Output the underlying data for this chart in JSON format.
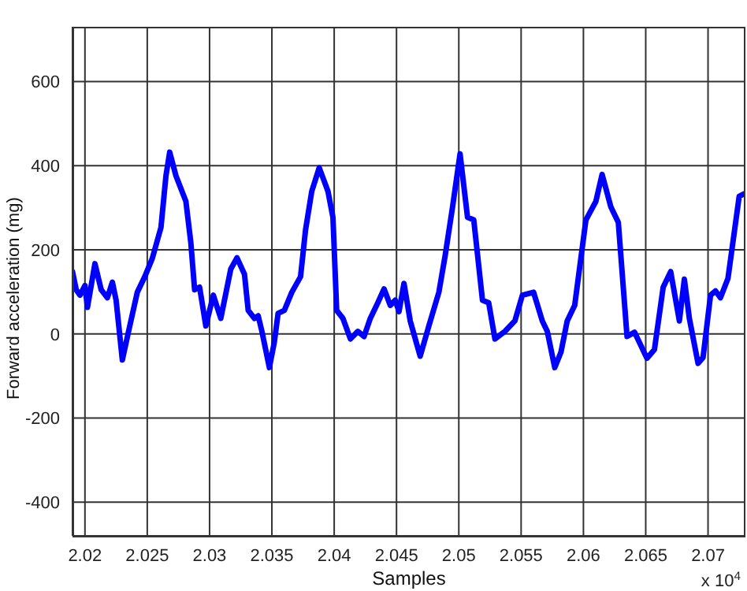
{
  "chart_data": {
    "type": "line",
    "xlabel": "Samples",
    "ylabel": "Forward acceleration (mg)",
    "annotations": [
      "x 10$^{4}$"
    ],
    "xlim": [
      2.019,
      2.073
    ],
    "xticks": [
      2.02,
      2.025,
      2.03,
      2.035,
      2.04,
      2.045,
      2.05,
      2.055,
      2.06,
      2.065,
      2.07
    ],
    "ylim": [
      -480,
      730
    ],
    "yticks": [
      -400,
      -200,
      0,
      200,
      400,
      600
    ],
    "grid": true,
    "marker": "none",
    "line_style": "solid",
    "series": [
      {
        "color": "#0000ff",
        "x": [
          2.019,
          2.0193,
          2.0196,
          2.02,
          2.0202,
          2.0208,
          2.0213,
          2.0218,
          2.0222,
          2.0225,
          2.023,
          2.0235,
          2.0242,
          2.0248,
          2.0254,
          2.0261,
          2.0265,
          2.0268,
          2.0273,
          2.0281,
          2.0285,
          2.0288,
          2.0292,
          2.0297,
          2.0303,
          2.0309,
          2.0317,
          2.0322,
          2.0328,
          2.0331,
          2.0336,
          2.0339,
          2.0342,
          2.0348,
          2.0352,
          2.0355,
          2.036,
          2.0366,
          2.0373,
          2.0377,
          2.0382,
          2.0388,
          2.0395,
          2.0399,
          2.0402,
          2.0407,
          2.0413,
          2.0419,
          2.0424,
          2.0429,
          2.0435,
          2.044,
          2.0445,
          2.0449,
          2.0452,
          2.0456,
          2.0461,
          2.0469,
          2.0476,
          2.0484,
          2.0489,
          2.0495,
          2.0501,
          2.0507,
          2.0512,
          2.0519,
          2.0524,
          2.0529,
          2.0537,
          2.0545,
          2.0551,
          2.056,
          2.0567,
          2.0571,
          2.0577,
          2.0582,
          2.0587,
          2.0593,
          2.0602,
          2.061,
          2.0615,
          2.0622,
          2.0628,
          2.0635,
          2.0641,
          2.0651,
          2.0657,
          2.0664,
          2.067,
          2.0677,
          2.0681,
          2.0685,
          2.0692,
          2.0696,
          2.0702,
          2.0706,
          2.071,
          2.0716,
          2.0725,
          2.0729
        ],
        "values": [
          148,
          105,
          92,
          115,
          63,
          167,
          105,
          86,
          123,
          80,
          -62,
          6,
          99,
          136,
          179,
          253,
          376,
          432,
          376,
          315,
          216,
          105,
          111,
          19,
          92,
          37,
          154,
          181,
          142,
          56,
          37,
          43,
          6,
          -80,
          -19,
          49,
          56,
          99,
          136,
          247,
          339,
          395,
          339,
          277,
          56,
          37,
          -12,
          6,
          -6,
          37,
          74,
          107,
          68,
          80,
          53,
          120,
          31,
          -53,
          19,
          99,
          185,
          302,
          428,
          277,
          271,
          80,
          74,
          -12,
          6,
          31,
          92,
          99,
          31,
          6,
          -80,
          -43,
          31,
          68,
          271,
          315,
          379,
          302,
          265,
          -6,
          4,
          -58,
          -37,
          111,
          148,
          31,
          130,
          37,
          -70,
          -56,
          92,
          102,
          86,
          132,
          327,
          333
        ]
      }
    ]
  }
}
